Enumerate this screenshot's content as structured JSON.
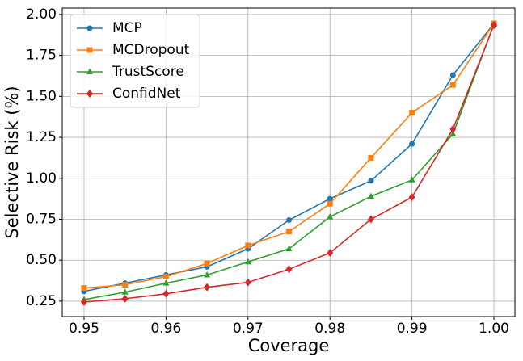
{
  "chart_data": {
    "type": "line",
    "x_label": "Coverage",
    "y_label": "Selective Risk (%)",
    "x": [
      0.95,
      0.955,
      0.96,
      0.965,
      0.97,
      0.975,
      0.98,
      0.985,
      0.99,
      0.995,
      1.0
    ],
    "series": [
      {
        "name": "MCP",
        "color": "#1f77b4",
        "marker": "circle",
        "values": [
          0.31,
          0.36,
          0.41,
          0.46,
          0.57,
          0.745,
          0.875,
          0.985,
          1.21,
          1.63,
          1.945
        ]
      },
      {
        "name": "MCDropout",
        "color": "#ff7f0e",
        "marker": "square",
        "values": [
          0.33,
          0.35,
          0.4,
          0.48,
          0.59,
          0.675,
          0.845,
          1.125,
          1.4,
          1.57,
          1.945
        ]
      },
      {
        "name": "TrustScore",
        "color": "#2ca02c",
        "marker": "triangle",
        "values": [
          0.26,
          0.305,
          0.36,
          0.41,
          0.49,
          0.57,
          0.765,
          0.89,
          0.99,
          1.27,
          1.94
        ]
      },
      {
        "name": "ConfidNet",
        "color": "#d62728",
        "marker": "diamond",
        "values": [
          0.245,
          0.265,
          0.295,
          0.335,
          0.365,
          0.445,
          0.545,
          0.75,
          0.885,
          1.3,
          1.935
        ]
      }
    ],
    "xlim": [
      0.94734,
      1.00256
    ],
    "ylim": [
      0.156,
      2.039
    ],
    "xticks": [
      0.95,
      0.96,
      0.97,
      0.98,
      0.99,
      {
        "value": 1.0,
        "label": "1.00"
      }
    ],
    "yticks": [
      0.25,
      {
        "value": 0.5,
        "label": "0.50"
      },
      0.75,
      {
        "value": 1.0,
        "label": "1.00"
      },
      1.25,
      {
        "value": 1.5,
        "label": "1.50"
      },
      1.75,
      {
        "value": 2.0,
        "label": "2.00"
      }
    ],
    "grid": true,
    "legend": "upper-left"
  }
}
